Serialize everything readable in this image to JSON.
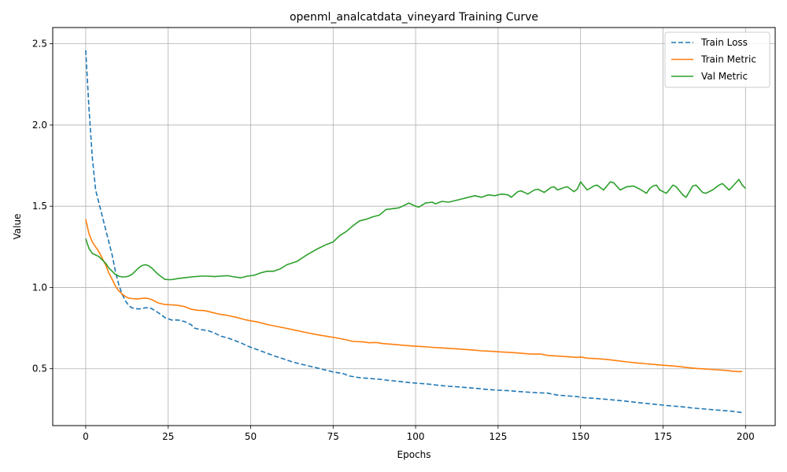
{
  "chart_data": {
    "type": "line",
    "title": "openml_analcatdata_vineyard Training Curve",
    "xlabel": "Epochs",
    "ylabel": "Value",
    "xlim": [
      -10,
      209
    ],
    "ylim": [
      0.15,
      2.6
    ],
    "xticks": [
      0,
      25,
      50,
      75,
      100,
      125,
      150,
      175,
      200
    ],
    "yticks": [
      0.5,
      1.0,
      1.5,
      2.0,
      2.5
    ],
    "xtick_labels": [
      "0",
      "25",
      "50",
      "75",
      "100",
      "125",
      "150",
      "175",
      "200"
    ],
    "ytick_labels": [
      "0.5",
      "1.0",
      "1.5",
      "2.0",
      "2.5"
    ],
    "grid": true,
    "legend_position": "top-right",
    "series": [
      {
        "name": "Train Loss",
        "color": "#1f77b4",
        "dash": "dashed",
        "points": [
          [
            0,
            2.46
          ],
          [
            1,
            2.1
          ],
          [
            2,
            1.8
          ],
          [
            3,
            1.6
          ],
          [
            4,
            1.52
          ],
          [
            5,
            1.44
          ],
          [
            6,
            1.36
          ],
          [
            7,
            1.28
          ],
          [
            8,
            1.2
          ],
          [
            9,
            1.1
          ],
          [
            10,
            1.02
          ],
          [
            11,
            0.96
          ],
          [
            12,
            0.92
          ],
          [
            13,
            0.89
          ],
          [
            14,
            0.875
          ],
          [
            15,
            0.87
          ],
          [
            16,
            0.868
          ],
          [
            17,
            0.87
          ],
          [
            18,
            0.875
          ],
          [
            19,
            0.876
          ],
          [
            20,
            0.87
          ],
          [
            22,
            0.845
          ],
          [
            24,
            0.815
          ],
          [
            26,
            0.8
          ],
          [
            28,
            0.8
          ],
          [
            30,
            0.79
          ],
          [
            32,
            0.77
          ],
          [
            33,
            0.75
          ],
          [
            35,
            0.74
          ],
          [
            37,
            0.735
          ],
          [
            39,
            0.72
          ],
          [
            41,
            0.7
          ],
          [
            43,
            0.69
          ],
          [
            45,
            0.675
          ],
          [
            47,
            0.66
          ],
          [
            49,
            0.64
          ],
          [
            51,
            0.625
          ],
          [
            53,
            0.61
          ],
          [
            55,
            0.595
          ],
          [
            57,
            0.58
          ],
          [
            60,
            0.56
          ],
          [
            63,
            0.54
          ],
          [
            66,
            0.525
          ],
          [
            69,
            0.51
          ],
          [
            72,
            0.495
          ],
          [
            75,
            0.48
          ],
          [
            78,
            0.47
          ],
          [
            80,
            0.455
          ],
          [
            83,
            0.445
          ],
          [
            86,
            0.44
          ],
          [
            89,
            0.435
          ],
          [
            92,
            0.428
          ],
          [
            95,
            0.422
          ],
          [
            98,
            0.415
          ],
          [
            101,
            0.41
          ],
          [
            104,
            0.405
          ],
          [
            107,
            0.398
          ],
          [
            110,
            0.392
          ],
          [
            113,
            0.388
          ],
          [
            116,
            0.383
          ],
          [
            119,
            0.378
          ],
          [
            122,
            0.372
          ],
          [
            125,
            0.368
          ],
          [
            128,
            0.365
          ],
          [
            131,
            0.36
          ],
          [
            134,
            0.356
          ],
          [
            137,
            0.352
          ],
          [
            140,
            0.35
          ],
          [
            141,
            0.345
          ],
          [
            143,
            0.338
          ],
          [
            146,
            0.333
          ],
          [
            149,
            0.328
          ],
          [
            151,
            0.322
          ],
          [
            154,
            0.318
          ],
          [
            157,
            0.313
          ],
          [
            160,
            0.308
          ],
          [
            163,
            0.302
          ],
          [
            166,
            0.295
          ],
          [
            169,
            0.288
          ],
          [
            172,
            0.282
          ],
          [
            175,
            0.276
          ],
          [
            178,
            0.27
          ],
          [
            181,
            0.265
          ],
          [
            184,
            0.258
          ],
          [
            187,
            0.253
          ],
          [
            190,
            0.248
          ],
          [
            193,
            0.243
          ],
          [
            196,
            0.238
          ],
          [
            199,
            0.23
          ]
        ]
      },
      {
        "name": "Train Metric",
        "color": "#ff7f0e",
        "dash": "solid",
        "points": [
          [
            0,
            1.42
          ],
          [
            1,
            1.33
          ],
          [
            2,
            1.28
          ],
          [
            3,
            1.25
          ],
          [
            4,
            1.22
          ],
          [
            5,
            1.18
          ],
          [
            6,
            1.14
          ],
          [
            7,
            1.09
          ],
          [
            8,
            1.05
          ],
          [
            9,
            1.01
          ],
          [
            10,
            0.98
          ],
          [
            11,
            0.96
          ],
          [
            12,
            0.945
          ],
          [
            13,
            0.935
          ],
          [
            14,
            0.932
          ],
          [
            15,
            0.93
          ],
          [
            16,
            0.93
          ],
          [
            17,
            0.933
          ],
          [
            18,
            0.935
          ],
          [
            19,
            0.932
          ],
          [
            20,
            0.925
          ],
          [
            22,
            0.905
          ],
          [
            24,
            0.895
          ],
          [
            26,
            0.893
          ],
          [
            28,
            0.89
          ],
          [
            30,
            0.882
          ],
          [
            32,
            0.866
          ],
          [
            34,
            0.86
          ],
          [
            36,
            0.858
          ],
          [
            38,
            0.848
          ],
          [
            40,
            0.838
          ],
          [
            43,
            0.828
          ],
          [
            46,
            0.815
          ],
          [
            48,
            0.803
          ],
          [
            50,
            0.795
          ],
          [
            52,
            0.788
          ],
          [
            55,
            0.772
          ],
          [
            58,
            0.76
          ],
          [
            61,
            0.748
          ],
          [
            64,
            0.735
          ],
          [
            67,
            0.722
          ],
          [
            70,
            0.71
          ],
          [
            73,
            0.7
          ],
          [
            76,
            0.69
          ],
          [
            79,
            0.678
          ],
          [
            81,
            0.668
          ],
          [
            84,
            0.665
          ],
          [
            86,
            0.66
          ],
          [
            88,
            0.662
          ],
          [
            90,
            0.655
          ],
          [
            93,
            0.65
          ],
          [
            96,
            0.645
          ],
          [
            99,
            0.64
          ],
          [
            102,
            0.636
          ],
          [
            105,
            0.632
          ],
          [
            108,
            0.628
          ],
          [
            111,
            0.624
          ],
          [
            114,
            0.62
          ],
          [
            117,
            0.616
          ],
          [
            120,
            0.61
          ],
          [
            123,
            0.607
          ],
          [
            126,
            0.603
          ],
          [
            129,
            0.6
          ],
          [
            132,
            0.595
          ],
          [
            135,
            0.59
          ],
          [
            138,
            0.59
          ],
          [
            140,
            0.582
          ],
          [
            143,
            0.578
          ],
          [
            146,
            0.574
          ],
          [
            149,
            0.57
          ],
          [
            150,
            0.572
          ],
          [
            152,
            0.565
          ],
          [
            155,
            0.562
          ],
          [
            158,
            0.557
          ],
          [
            161,
            0.55
          ],
          [
            164,
            0.542
          ],
          [
            167,
            0.536
          ],
          [
            170,
            0.53
          ],
          [
            173,
            0.525
          ],
          [
            176,
            0.52
          ],
          [
            179,
            0.515
          ],
          [
            182,
            0.508
          ],
          [
            185,
            0.502
          ],
          [
            188,
            0.498
          ],
          [
            191,
            0.494
          ],
          [
            194,
            0.49
          ],
          [
            196,
            0.485
          ],
          [
            198,
            0.482
          ],
          [
            199,
            0.483
          ]
        ]
      },
      {
        "name": "Val Metric",
        "color": "#2ca02c",
        "dash": "solid",
        "points": [
          [
            0,
            1.3
          ],
          [
            1,
            1.24
          ],
          [
            2,
            1.21
          ],
          [
            3,
            1.2
          ],
          [
            4,
            1.19
          ],
          [
            5,
            1.17
          ],
          [
            6,
            1.15
          ],
          [
            7,
            1.12
          ],
          [
            8,
            1.1
          ],
          [
            9,
            1.08
          ],
          [
            10,
            1.07
          ],
          [
            11,
            1.065
          ],
          [
            12,
            1.065
          ],
          [
            13,
            1.07
          ],
          [
            14,
            1.08
          ],
          [
            15,
            1.1
          ],
          [
            16,
            1.12
          ],
          [
            17,
            1.135
          ],
          [
            18,
            1.14
          ],
          [
            19,
            1.135
          ],
          [
            20,
            1.12
          ],
          [
            21,
            1.1
          ],
          [
            22,
            1.08
          ],
          [
            23,
            1.065
          ],
          [
            24,
            1.05
          ],
          [
            25,
            1.048
          ],
          [
            26,
            1.048
          ],
          [
            28,
            1.055
          ],
          [
            30,
            1.06
          ],
          [
            32,
            1.065
          ],
          [
            35,
            1.07
          ],
          [
            37,
            1.07
          ],
          [
            39,
            1.067
          ],
          [
            41,
            1.07
          ],
          [
            43,
            1.073
          ],
          [
            45,
            1.065
          ],
          [
            47,
            1.06
          ],
          [
            49,
            1.07
          ],
          [
            51,
            1.075
          ],
          [
            53,
            1.09
          ],
          [
            55,
            1.1
          ],
          [
            57,
            1.1
          ],
          [
            59,
            1.115
          ],
          [
            61,
            1.14
          ],
          [
            64,
            1.16
          ],
          [
            67,
            1.2
          ],
          [
            70,
            1.235
          ],
          [
            73,
            1.265
          ],
          [
            75,
            1.28
          ],
          [
            77,
            1.32
          ],
          [
            79,
            1.345
          ],
          [
            81,
            1.38
          ],
          [
            83,
            1.41
          ],
          [
            85,
            1.42
          ],
          [
            87,
            1.435
          ],
          [
            89,
            1.445
          ],
          [
            91,
            1.48
          ],
          [
            93,
            1.485
          ],
          [
            95,
            1.49
          ],
          [
            97,
            1.51
          ],
          [
            98,
            1.52
          ],
          [
            100,
            1.5
          ],
          [
            101,
            1.495
          ],
          [
            103,
            1.52
          ],
          [
            105,
            1.525
          ],
          [
            106,
            1.515
          ],
          [
            108,
            1.53
          ],
          [
            110,
            1.525
          ],
          [
            112,
            1.535
          ],
          [
            114,
            1.545
          ],
          [
            116,
            1.555
          ],
          [
            118,
            1.565
          ],
          [
            120,
            1.555
          ],
          [
            122,
            1.57
          ],
          [
            124,
            1.565
          ],
          [
            126,
            1.575
          ],
          [
            128,
            1.57
          ],
          [
            129,
            1.555
          ],
          [
            131,
            1.59
          ],
          [
            132,
            1.595
          ],
          [
            134,
            1.575
          ],
          [
            136,
            1.6
          ],
          [
            137,
            1.605
          ],
          [
            139,
            1.585
          ],
          [
            141,
            1.615
          ],
          [
            142,
            1.62
          ],
          [
            143,
            1.6
          ],
          [
            145,
            1.615
          ],
          [
            146,
            1.62
          ],
          [
            148,
            1.59
          ],
          [
            149,
            1.605
          ],
          [
            150,
            1.65
          ],
          [
            152,
            1.6
          ],
          [
            154,
            1.625
          ],
          [
            155,
            1.63
          ],
          [
            157,
            1.6
          ],
          [
            159,
            1.65
          ],
          [
            160,
            1.645
          ],
          [
            162,
            1.6
          ],
          [
            164,
            1.62
          ],
          [
            166,
            1.625
          ],
          [
            168,
            1.605
          ],
          [
            170,
            1.58
          ],
          [
            171,
            1.61
          ],
          [
            172,
            1.625
          ],
          [
            173,
            1.63
          ],
          [
            174,
            1.6
          ],
          [
            176,
            1.58
          ],
          [
            178,
            1.63
          ],
          [
            179,
            1.62
          ],
          [
            181,
            1.57
          ],
          [
            182,
            1.555
          ],
          [
            184,
            1.625
          ],
          [
            185,
            1.63
          ],
          [
            187,
            1.585
          ],
          [
            188,
            1.58
          ],
          [
            190,
            1.6
          ],
          [
            192,
            1.63
          ],
          [
            193,
            1.64
          ],
          [
            195,
            1.6
          ],
          [
            196,
            1.62
          ],
          [
            198,
            1.665
          ],
          [
            199,
            1.63
          ],
          [
            200,
            1.61
          ]
        ]
      }
    ]
  }
}
